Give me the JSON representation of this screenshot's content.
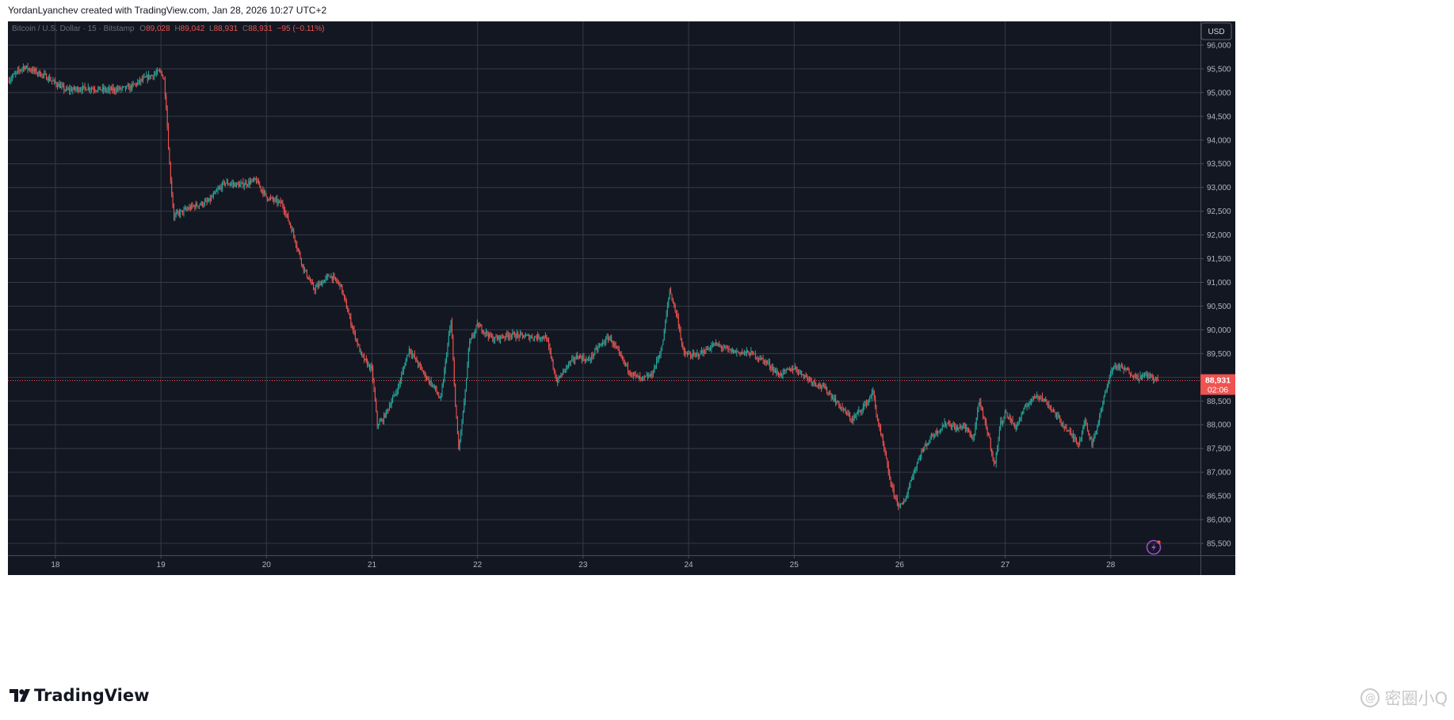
{
  "header": {
    "text": "YordanLyanchev created with TradingView.com, Jan 28, 2026 10:27 UTC+2"
  },
  "legend": {
    "symbol": "Bitcoin / U.S. Dollar · 15 · Bitstamp",
    "o_label": "O",
    "o_value": "89,028",
    "h_label": "H",
    "h_value": "89,042",
    "l_label": "L",
    "l_value": "88,931",
    "c_label": "C",
    "c_value": "88,931",
    "change": "−95 (−0.11%)"
  },
  "currency_button": "USD",
  "price_label": {
    "value": "88,931",
    "countdown": "02:06"
  },
  "brand": {
    "name": "TradingView"
  },
  "watermark": {
    "symbol": "@",
    "text": "密圈小Q"
  },
  "colors": {
    "background": "#131722",
    "grid": "#363a45",
    "up": "#26a69a",
    "down": "#ef5350",
    "text": "#b2b5be",
    "last_price": "#ef5350"
  },
  "chart_data": {
    "type": "candlestick",
    "title": "Bitcoin / U.S. Dollar · 15 · Bitstamp",
    "xlabel": "",
    "ylabel": "",
    "ylim": [
      85250,
      96500
    ],
    "xlim": [
      17.55,
      28.85
    ],
    "x_ticks": [
      18,
      19,
      20,
      21,
      22,
      23,
      24,
      25,
      26,
      27,
      28
    ],
    "x_tick_labels": [
      "18",
      "19",
      "20",
      "21",
      "22",
      "23",
      "24",
      "25",
      "26",
      "27",
      "28"
    ],
    "y_ticks": [
      85500,
      86000,
      86500,
      87000,
      87500,
      88000,
      88500,
      89000,
      89500,
      90000,
      90500,
      91000,
      91500,
      92000,
      92500,
      93000,
      93500,
      94000,
      94500,
      95000,
      95500,
      96000
    ],
    "y_tick_labels": [
      "85,500",
      "86,000",
      "86,500",
      "87,000",
      "87,500",
      "88,000",
      "88,500",
      "89,000",
      "89,500",
      "90,000",
      "90,500",
      "91,000",
      "91,500",
      "92,000",
      "92,500",
      "93,000",
      "93,500",
      "94,000",
      "94,500",
      "95,000",
      "95,500",
      "96,000"
    ],
    "grid": true,
    "last_price": 88931,
    "price_path": [
      [
        17.55,
        95250
      ],
      [
        17.7,
        95550
      ],
      [
        17.9,
        95350
      ],
      [
        18.1,
        95050
      ],
      [
        18.3,
        95100
      ],
      [
        18.5,
        95050
      ],
      [
        18.7,
        95100
      ],
      [
        18.85,
        95300
      ],
      [
        19.0,
        95450
      ],
      [
        19.03,
        95250
      ],
      [
        19.05,
        94700
      ],
      [
        19.08,
        93500
      ],
      [
        19.12,
        92400
      ],
      [
        19.3,
        92600
      ],
      [
        19.45,
        92700
      ],
      [
        19.6,
        93100
      ],
      [
        19.75,
        93050
      ],
      [
        19.9,
        93150
      ],
      [
        20.0,
        92800
      ],
      [
        20.15,
        92650
      ],
      [
        20.25,
        92050
      ],
      [
        20.35,
        91300
      ],
      [
        20.45,
        90850
      ],
      [
        20.6,
        91150
      ],
      [
        20.7,
        90950
      ],
      [
        20.8,
        90150
      ],
      [
        20.9,
        89450
      ],
      [
        21.0,
        89150
      ],
      [
        21.05,
        88000
      ],
      [
        21.1,
        88100
      ],
      [
        21.25,
        88800
      ],
      [
        21.35,
        89600
      ],
      [
        21.5,
        89050
      ],
      [
        21.6,
        88750
      ],
      [
        21.65,
        88500
      ],
      [
        21.72,
        89750
      ],
      [
        21.75,
        90200
      ],
      [
        21.78,
        88800
      ],
      [
        21.82,
        87450
      ],
      [
        21.88,
        88600
      ],
      [
        21.92,
        89700
      ],
      [
        22.0,
        90100
      ],
      [
        22.15,
        89800
      ],
      [
        22.3,
        89900
      ],
      [
        22.5,
        89850
      ],
      [
        22.65,
        89850
      ],
      [
        22.75,
        88900
      ],
      [
        22.85,
        89250
      ],
      [
        22.95,
        89450
      ],
      [
        23.05,
        89350
      ],
      [
        23.15,
        89650
      ],
      [
        23.25,
        89850
      ],
      [
        23.35,
        89450
      ],
      [
        23.45,
        89100
      ],
      [
        23.55,
        88950
      ],
      [
        23.65,
        89050
      ],
      [
        23.75,
        89650
      ],
      [
        23.82,
        90850
      ],
      [
        23.9,
        90200
      ],
      [
        23.95,
        89500
      ],
      [
        24.05,
        89450
      ],
      [
        24.15,
        89550
      ],
      [
        24.25,
        89700
      ],
      [
        24.4,
        89550
      ],
      [
        24.6,
        89500
      ],
      [
        24.75,
        89300
      ],
      [
        24.85,
        89050
      ],
      [
        25.0,
        89200
      ],
      [
        25.15,
        88950
      ],
      [
        25.3,
        88750
      ],
      [
        25.45,
        88350
      ],
      [
        25.55,
        88100
      ],
      [
        25.7,
        88500
      ],
      [
        25.75,
        88700
      ],
      [
        25.78,
        88200
      ],
      [
        25.85,
        87500
      ],
      [
        25.92,
        86700
      ],
      [
        26.0,
        86250
      ],
      [
        26.05,
        86400
      ],
      [
        26.1,
        86800
      ],
      [
        26.2,
        87400
      ],
      [
        26.3,
        87750
      ],
      [
        26.45,
        88050
      ],
      [
        26.55,
        87900
      ],
      [
        26.6,
        88000
      ],
      [
        26.7,
        87700
      ],
      [
        26.75,
        88500
      ],
      [
        26.85,
        87700
      ],
      [
        26.9,
        87100
      ],
      [
        26.95,
        88000
      ],
      [
        27.0,
        88250
      ],
      [
        27.1,
        87950
      ],
      [
        27.2,
        88400
      ],
      [
        27.3,
        88650
      ],
      [
        27.4,
        88450
      ],
      [
        27.5,
        88150
      ],
      [
        27.6,
        87850
      ],
      [
        27.7,
        87600
      ],
      [
        27.75,
        88100
      ],
      [
        27.82,
        87600
      ],
      [
        27.9,
        88200
      ],
      [
        27.97,
        88900
      ],
      [
        28.03,
        89250
      ],
      [
        28.15,
        89150
      ],
      [
        28.25,
        89000
      ],
      [
        28.35,
        89050
      ],
      [
        28.45,
        88931
      ]
    ]
  }
}
